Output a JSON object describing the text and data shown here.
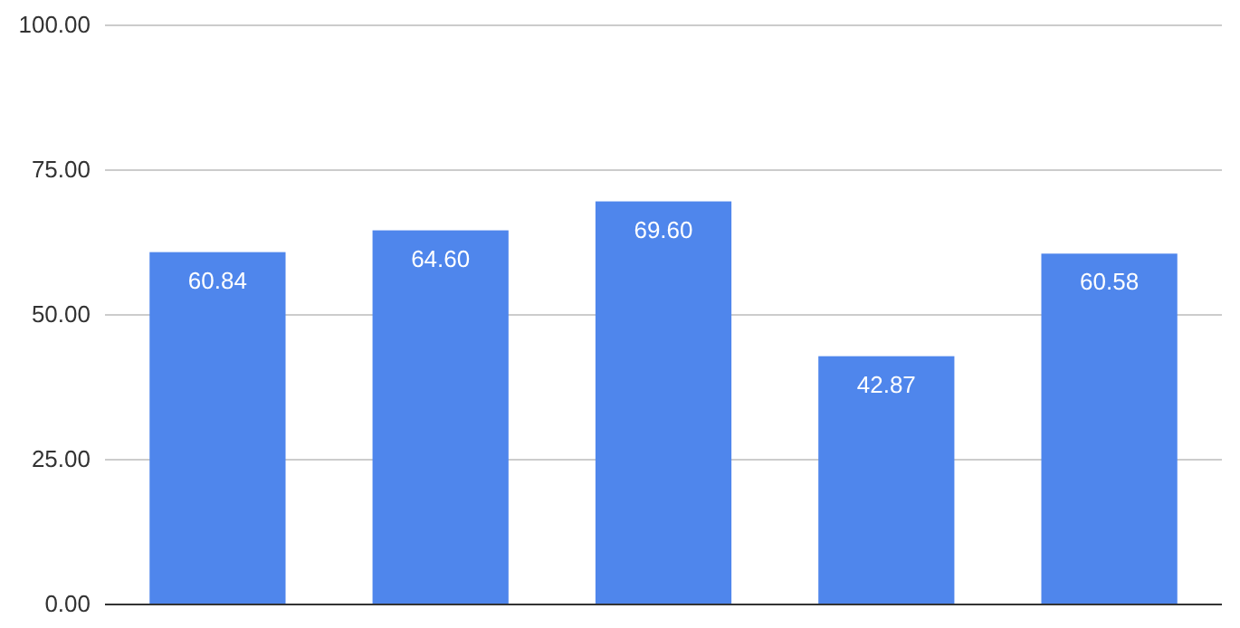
{
  "chart_data": {
    "type": "bar",
    "categories": [
      null,
      null,
      null,
      null,
      null
    ],
    "values": [
      60.84,
      64.6,
      69.6,
      42.87,
      60.58
    ],
    "color": "#4f86ec",
    "ylim": [
      0,
      100
    ],
    "yticks": [
      {
        "value": 0,
        "label": "0.00"
      },
      {
        "value": 25,
        "label": "25.00"
      },
      {
        "value": 50,
        "label": "50.00"
      },
      {
        "value": 75,
        "label": "75.00"
      },
      {
        "value": 100,
        "label": "100.00"
      }
    ],
    "value_labels": [
      "60.84",
      "64.60",
      "69.60",
      "42.87",
      "60.58"
    ],
    "grid": "y"
  }
}
